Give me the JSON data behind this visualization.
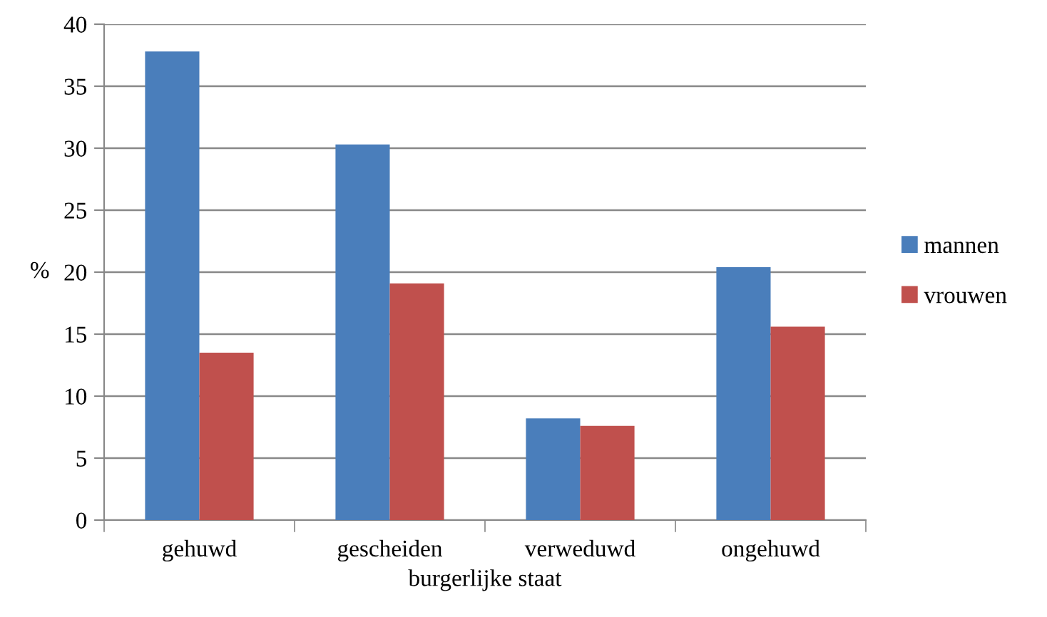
{
  "chart_data": {
    "type": "bar",
    "xlabel": "burgerlijke staat",
    "ylabel": "%",
    "categories": [
      "gehuwd",
      "gescheiden",
      "verweduwd",
      "ongehuwd"
    ],
    "series": [
      {
        "name": "mannen",
        "color": "#4a7ebb",
        "values": [
          37.8,
          30.3,
          8.2,
          20.4
        ]
      },
      {
        "name": "vrouwen",
        "color": "#c0504d",
        "values": [
          13.5,
          19.1,
          7.6,
          15.6
        ]
      }
    ],
    "ylim": [
      0,
      40
    ],
    "yticks": [
      0,
      5,
      10,
      15,
      20,
      25,
      30,
      35,
      40
    ],
    "grid": "y",
    "legend": "right"
  }
}
